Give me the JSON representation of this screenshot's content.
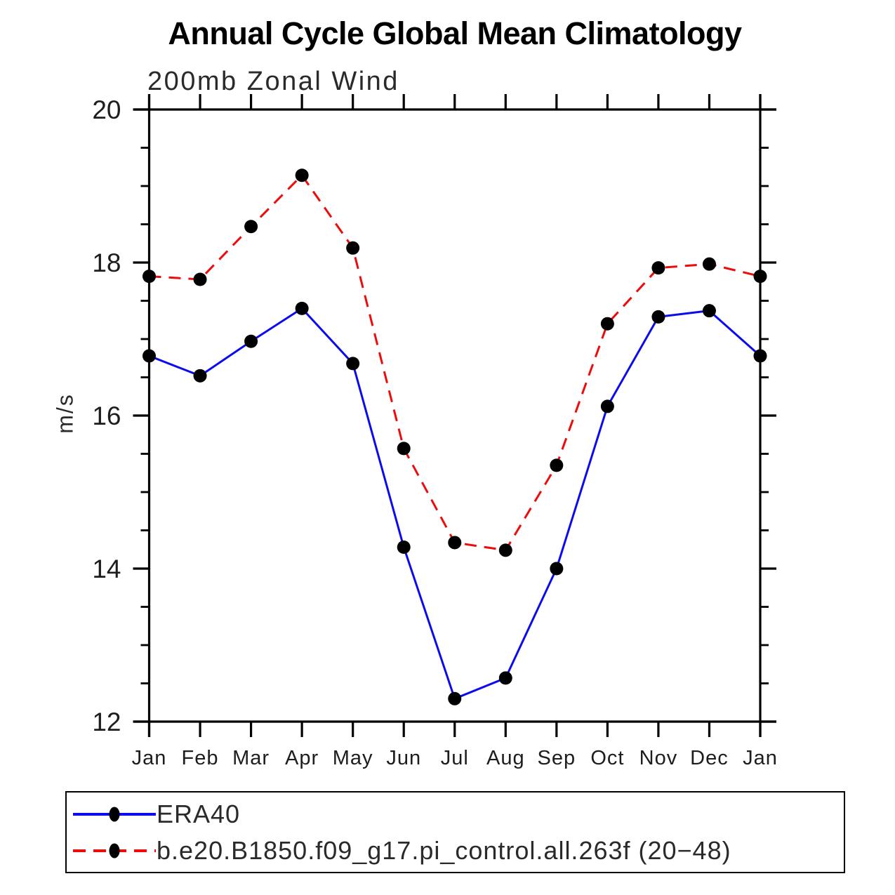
{
  "page": {
    "background": "#ffffff"
  },
  "chart_data": {
    "type": "line",
    "title": "Annual Cycle Global Mean Climatology",
    "subtitle": "200mb Zonal Wind",
    "ylabel": "m/s",
    "xlabel": "",
    "categories": [
      "Jan",
      "Feb",
      "Mar",
      "Apr",
      "May",
      "Jun",
      "Jul",
      "Aug",
      "Sep",
      "Oct",
      "Nov",
      "Dec",
      "Jan"
    ],
    "series": [
      {
        "name": "ERA40",
        "color": "#0b0bee",
        "line_style": "solid",
        "marker": "circle",
        "marker_color": "#000000",
        "values": [
          16.78,
          16.52,
          16.97,
          17.4,
          16.68,
          14.28,
          12.3,
          12.57,
          14.0,
          16.12,
          17.29,
          17.37,
          16.78
        ]
      },
      {
        "name": "b.e20.B1850.f09_g17.pi_control.all.263f (20−48)",
        "color": "#ee0b0b",
        "line_style": "dashed",
        "marker": "circle",
        "marker_color": "#000000",
        "values": [
          17.82,
          17.78,
          18.47,
          19.14,
          18.19,
          15.57,
          14.34,
          14.24,
          15.35,
          17.2,
          17.93,
          17.98,
          17.82
        ]
      }
    ],
    "ylim": [
      12,
      20
    ],
    "yticks_major": [
      20,
      18,
      16,
      14,
      12
    ],
    "ytick_minor_step": 0.5,
    "grid": false,
    "legend_position": "bottom",
    "axis_color": "#000000"
  }
}
